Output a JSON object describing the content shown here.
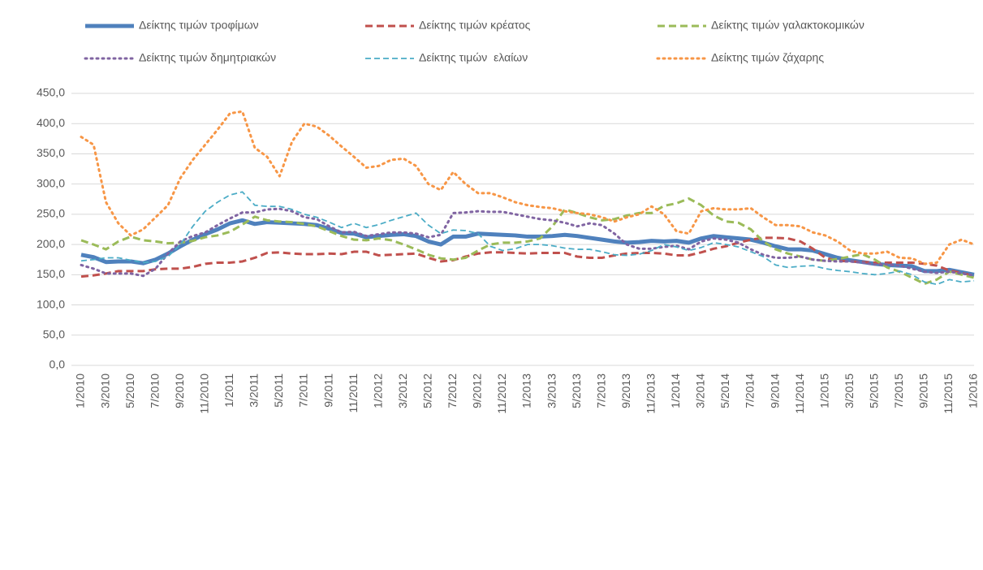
{
  "chart_data": {
    "type": "line",
    "categories": [
      "1/2010",
      null,
      "3/2010",
      null,
      "5/2010",
      null,
      "7/2010",
      null,
      "9/2010",
      null,
      "11/2010",
      null,
      "1/2011",
      null,
      "3/2011",
      null,
      "5/2011",
      null,
      "7/2011",
      null,
      "9/2011",
      null,
      "11/2011",
      null,
      "1/2012",
      null,
      "3/2012",
      null,
      "5/2012",
      null,
      "7/2012",
      null,
      "9/2012",
      null,
      "11/2012",
      null,
      "1/2013",
      null,
      "3/2013",
      null,
      "5/2013",
      null,
      "7/2013",
      null,
      "9/2013",
      null,
      "11/2013",
      null,
      "1/2014",
      null,
      "3/2014",
      null,
      "5/2014",
      null,
      "7/2014",
      null,
      "9/2014",
      null,
      "11/2014",
      null,
      "1/2015",
      null,
      "3/2015",
      null,
      "5/2015",
      null,
      "7/2015",
      null,
      "9/2015",
      null,
      "11/2015",
      null,
      "1/2016"
    ],
    "series": [
      {
        "name": "Δείκτης τιμών τροφίμων",
        "color": "#4f81bd",
        "style": "thick",
        "values": [
          183,
          179,
          171,
          172,
          172,
          169,
          175,
          185,
          197,
          208,
          217,
          225,
          235,
          240,
          234,
          237,
          236,
          235,
          234,
          232,
          226,
          219,
          218,
          212,
          214,
          216,
          217,
          214,
          205,
          200,
          213,
          213,
          218,
          217,
          216,
          215,
          213,
          213,
          214,
          216,
          214,
          211,
          208,
          205,
          203,
          204,
          206,
          205,
          206,
          203,
          210,
          214,
          212,
          210,
          208,
          203,
          197,
          192,
          192,
          190,
          184,
          178,
          174,
          171,
          168,
          166,
          165,
          164,
          156,
          156,
          158,
          154,
          150
        ]
      },
      {
        "name": "Δείκτης τιμών κρέατος",
        "color": "#c0504d",
        "style": "dashed",
        "values": [
          147,
          149,
          152,
          156,
          156,
          156,
          159,
          160,
          160,
          163,
          168,
          170,
          170,
          172,
          178,
          186,
          187,
          185,
          184,
          184,
          185,
          184,
          188,
          188,
          182,
          183,
          184,
          185,
          178,
          172,
          174,
          180,
          185,
          187,
          187,
          186,
          185,
          186,
          186,
          186,
          180,
          178,
          178,
          182,
          185,
          186,
          186,
          185,
          182,
          182,
          187,
          193,
          197,
          203,
          208,
          211,
          211,
          210,
          205,
          193,
          178,
          173,
          172,
          171,
          170,
          170,
          170,
          170,
          168,
          165,
          157,
          153,
          148
        ]
      },
      {
        "name": "Δείκτης τιμών γαλακτοκομικών",
        "color": "#9bbb59",
        "style": "dashed",
        "values": [
          207,
          200,
          192,
          205,
          213,
          207,
          205,
          202,
          203,
          206,
          212,
          215,
          221,
          233,
          246,
          240,
          238,
          237,
          234,
          230,
          222,
          214,
          208,
          207,
          210,
          207,
          200,
          192,
          183,
          177,
          175,
          178,
          190,
          200,
          203,
          203,
          205,
          210,
          230,
          258,
          252,
          245,
          240,
          242,
          248,
          252,
          252,
          264,
          268,
          276,
          265,
          248,
          238,
          236,
          225,
          205,
          192,
          185,
          180,
          175,
          173,
          176,
          180,
          184,
          175,
          162,
          155,
          145,
          135,
          142,
          155,
          150,
          145
        ]
      },
      {
        "name": "Δείκτης τιμών δημητριακών",
        "color": "#8064a2",
        "style": "dotted",
        "values": [
          166,
          160,
          152,
          152,
          152,
          148,
          160,
          185,
          205,
          214,
          220,
          232,
          243,
          253,
          253,
          258,
          259,
          255,
          245,
          242,
          230,
          220,
          221,
          214,
          217,
          220,
          220,
          218,
          212,
          216,
          252,
          253,
          255,
          254,
          254,
          250,
          246,
          242,
          240,
          236,
          230,
          235,
          232,
          218,
          200,
          193,
          193,
          196,
          198,
          192,
          205,
          210,
          208,
          203,
          192,
          183,
          178,
          178,
          180,
          175,
          173,
          172,
          172,
          170,
          167,
          167,
          165,
          160,
          155,
          153,
          155,
          152,
          149
        ]
      },
      {
        "name": "Δείκτης τιμών  ελαίων",
        "color": "#4bacc6",
        "style": "thin-dashed",
        "values": [
          173,
          175,
          178,
          178,
          174,
          170,
          172,
          180,
          200,
          230,
          255,
          270,
          282,
          287,
          265,
          263,
          263,
          258,
          250,
          245,
          237,
          228,
          235,
          228,
          233,
          240,
          246,
          252,
          232,
          218,
          224,
          223,
          218,
          197,
          190,
          193,
          200,
          200,
          198,
          194,
          192,
          192,
          188,
          183,
          182,
          184,
          190,
          200,
          196,
          190,
          195,
          203,
          200,
          196,
          188,
          180,
          166,
          162,
          164,
          165,
          160,
          157,
          155,
          152,
          150,
          152,
          156,
          150,
          138,
          134,
          142,
          138,
          140
        ]
      },
      {
        "name": "Δείκτης τιμών ζάχαρης",
        "color": "#f79646",
        "style": "dotted",
        "values": [
          378,
          365,
          270,
          235,
          215,
          225,
          245,
          265,
          310,
          340,
          365,
          390,
          417,
          420,
          360,
          345,
          313,
          370,
          400,
          395,
          380,
          362,
          345,
          327,
          330,
          340,
          342,
          330,
          300,
          290,
          320,
          300,
          285,
          285,
          278,
          270,
          265,
          262,
          260,
          255,
          252,
          250,
          245,
          238,
          245,
          250,
          263,
          250,
          222,
          218,
          255,
          260,
          258,
          258,
          260,
          245,
          232,
          232,
          230,
          220,
          215,
          205,
          190,
          185,
          185,
          188,
          178,
          177,
          168,
          170,
          200,
          208,
          200
        ]
      }
    ],
    "ylim": [
      0,
      450
    ],
    "yticks": [
      {
        "value": 0,
        "label": "0,0"
      },
      {
        "value": 50,
        "label": "50,0"
      },
      {
        "value": 100,
        "label": "100,0"
      },
      {
        "value": 150,
        "label": "150,0"
      },
      {
        "value": 200,
        "label": "200,0"
      },
      {
        "value": 250,
        "label": "250,0"
      },
      {
        "value": 300,
        "label": "300,0"
      },
      {
        "value": 350,
        "label": "350,0"
      },
      {
        "value": 400,
        "label": "400,0"
      },
      {
        "value": 450,
        "label": "450,0"
      }
    ],
    "grid": true,
    "legend": "top"
  }
}
